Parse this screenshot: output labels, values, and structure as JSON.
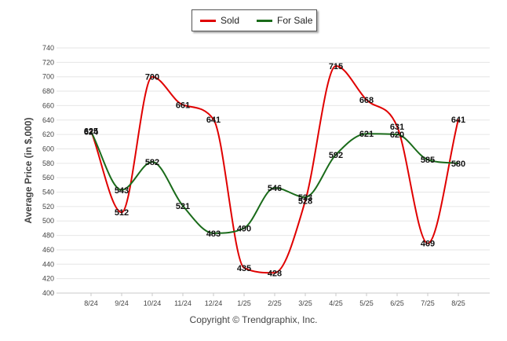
{
  "legend": {
    "sold": "Sold",
    "for_sale": "For Sale"
  },
  "copyright": "Copyright © Trendgraphix, Inc.",
  "colors": {
    "sold": "#e00000",
    "for_sale": "#1a6b1a",
    "grid": "#e6e6e6"
  },
  "chart_data": {
    "type": "line",
    "title": "",
    "xlabel": "",
    "ylabel": "Average Price (in $,000)",
    "categories": [
      "8/24",
      "9/24",
      "10/24",
      "11/24",
      "12/24",
      "1/25",
      "2/25",
      "3/25",
      "4/25",
      "5/25",
      "6/25",
      "7/25",
      "8/25"
    ],
    "ylim": [
      400,
      740
    ],
    "yticks": [
      400,
      420,
      440,
      460,
      480,
      500,
      520,
      540,
      560,
      580,
      600,
      620,
      640,
      660,
      680,
      700,
      720,
      740
    ],
    "grid": true,
    "legend_position": "top-center",
    "series": [
      {
        "name": "Sold",
        "values": [
          625,
          512,
          700,
          661,
          641,
          435,
          428,
          528,
          715,
          668,
          631,
          469,
          641
        ]
      },
      {
        "name": "For Sale",
        "values": [
          624,
          543,
          582,
          521,
          483,
          490,
          546,
          533,
          592,
          621,
          620,
          585,
          580
        ]
      }
    ]
  }
}
